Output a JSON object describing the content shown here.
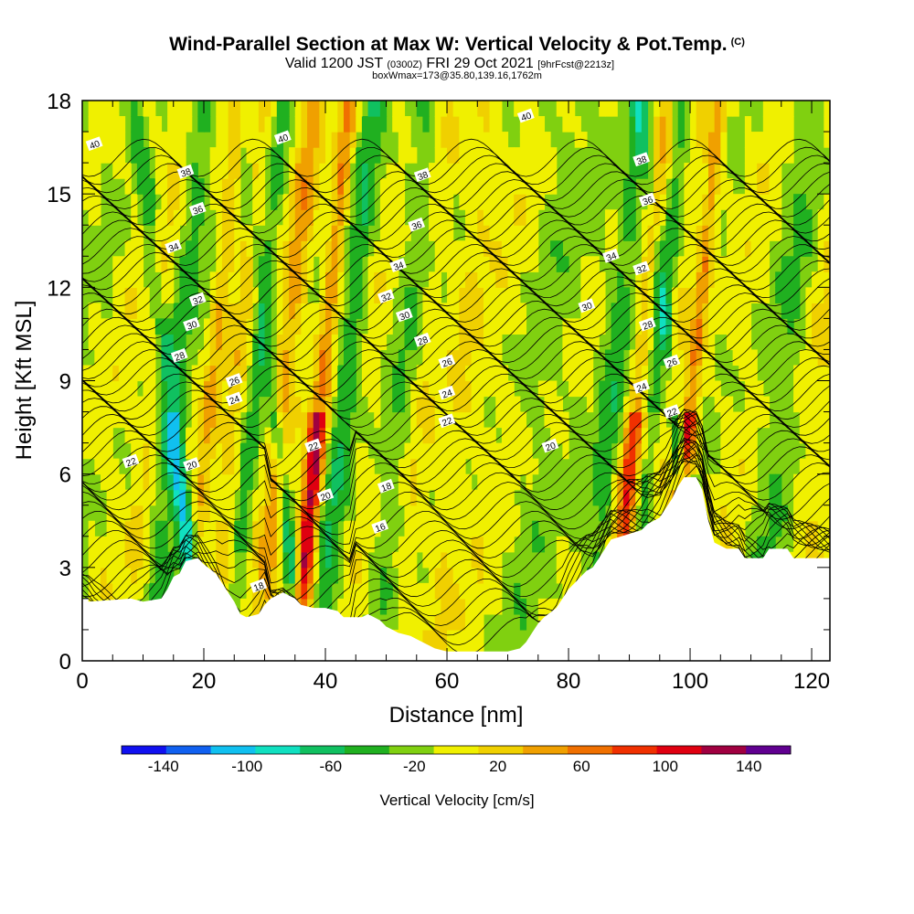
{
  "chart_data": {
    "type": "heatmap",
    "title": "Wind-Parallel Section at Max W: Vertical Velocity & Pot.Temp.",
    "title_mark": "(C)",
    "subtitle_parts": {
      "a": "Valid 1200 JST",
      "b": "(0300Z)",
      "c": "FRI 29 Oct 2021",
      "d": "[9hrFcst@2213z]"
    },
    "subtitle2": "boxWmax=173@35.80,139.16,1762m",
    "xlabel": "Distance [nm]",
    "ylabel": "Height [Kft MSL]",
    "xlim": [
      0,
      123
    ],
    "ylim": [
      0,
      18
    ],
    "x_ticks": [
      "0",
      "20",
      "40",
      "60",
      "80",
      "100",
      "120"
    ],
    "y_ticks": [
      "0",
      "3",
      "6",
      "9",
      "12",
      "15",
      "18"
    ],
    "colorbar": {
      "label": "Vertical Velocity [cm/s]",
      "ticks": [
        "-140",
        "-100",
        "-60",
        "-20",
        "20",
        "60",
        "100",
        "140"
      ],
      "colors": [
        "#1010f0",
        "#1060f0",
        "#10c0f0",
        "#10e0c0",
        "#10c060",
        "#20b020",
        "#80d010",
        "#f0f000",
        "#f0d000",
        "#f0a000",
        "#f07000",
        "#f03000",
        "#e00010",
        "#a00040",
        "#600090"
      ]
    },
    "terrain_kft": [
      [
        0,
        2
      ],
      [
        1,
        2
      ],
      [
        1,
        1.9
      ],
      [
        8,
        2
      ],
      [
        10,
        1.9
      ],
      [
        13,
        2
      ],
      [
        14,
        2.3
      ],
      [
        15,
        2.7
      ],
      [
        16,
        2.8
      ],
      [
        17,
        3.2
      ],
      [
        19,
        3.3
      ],
      [
        20,
        3.1
      ],
      [
        22,
        2.8
      ],
      [
        23,
        2.5
      ],
      [
        24,
        2.2
      ],
      [
        25,
        1.9
      ],
      [
        26,
        1.5
      ],
      [
        27,
        1.4
      ],
      [
        29,
        1.5
      ],
      [
        30,
        1.8
      ],
      [
        31,
        2.0
      ],
      [
        33,
        2.2
      ],
      [
        35,
        2.0
      ],
      [
        36,
        1.8
      ],
      [
        38,
        1.7
      ],
      [
        40,
        1.7
      ],
      [
        42,
        1.6
      ],
      [
        43,
        1.4
      ],
      [
        46,
        1.4
      ],
      [
        47,
        1.5
      ],
      [
        49,
        1.3
      ],
      [
        50,
        1.1
      ],
      [
        51,
        1.0
      ],
      [
        52,
        0.9
      ],
      [
        54,
        0.8
      ],
      [
        55,
        0.7
      ],
      [
        56,
        0.6
      ],
      [
        57,
        0.5
      ],
      [
        58,
        0.4
      ],
      [
        60,
        0.3
      ],
      [
        70,
        0.3
      ],
      [
        72,
        0.4
      ],
      [
        73,
        0.6
      ],
      [
        74,
        0.9
      ],
      [
        75,
        1.2
      ],
      [
        76,
        1.4
      ],
      [
        78,
        1.7
      ],
      [
        79,
        2.0
      ],
      [
        80,
        2.3
      ],
      [
        81,
        2.5
      ],
      [
        82,
        2.7
      ],
      [
        83,
        2.9
      ],
      [
        84,
        3.0
      ],
      [
        85,
        3.3
      ],
      [
        86,
        3.6
      ],
      [
        87,
        3.9
      ],
      [
        92,
        4.2
      ],
      [
        93,
        4.4
      ],
      [
        95,
        4.6
      ],
      [
        97,
        5.2
      ],
      [
        98,
        5.6
      ],
      [
        99,
        5.9
      ],
      [
        101,
        5.9
      ],
      [
        102,
        5.5
      ],
      [
        103,
        4.5
      ],
      [
        104,
        3.8
      ],
      [
        106,
        3.6
      ],
      [
        108,
        3.6
      ],
      [
        109,
        3.3
      ],
      [
        112,
        3.3
      ],
      [
        113,
        3.6
      ],
      [
        116,
        3.6
      ],
      [
        117,
        3.3
      ],
      [
        123,
        3.3
      ]
    ],
    "w_columns": [
      {
        "x": 4,
        "hw": 2.5,
        "w": 10
      },
      {
        "x": 9,
        "hw": 2,
        "w": 20
      },
      {
        "x": 13,
        "hw": 2,
        "w": -30
      },
      {
        "x": 17,
        "hw": 1.5,
        "w": -80
      },
      {
        "x": 19,
        "hw": 1.5,
        "w": 40
      },
      {
        "x": 23,
        "hw": 2,
        "w": 30
      },
      {
        "x": 26,
        "hw": 1.5,
        "w": -30
      },
      {
        "x": 31,
        "hw": 2,
        "w": 50
      },
      {
        "x": 34,
        "hw": 1.2,
        "w": -60
      },
      {
        "x": 37,
        "hw": 1.5,
        "w": 130
      },
      {
        "x": 41,
        "hw": 2,
        "w": -40
      },
      {
        "x": 45,
        "hw": 3,
        "w": 10
      },
      {
        "x": 50,
        "hw": 2,
        "w": -20
      },
      {
        "x": 54,
        "hw": 2,
        "w": 15
      },
      {
        "x": 60,
        "hw": 3,
        "w": 20
      },
      {
        "x": 66,
        "hw": 3,
        "w": 10
      },
      {
        "x": 74,
        "hw": 3,
        "w": -10
      },
      {
        "x": 85,
        "hw": 2,
        "w": -30
      },
      {
        "x": 89,
        "hw": 1.5,
        "w": 90
      },
      {
        "x": 92,
        "hw": 1.5,
        "w": -30
      },
      {
        "x": 95,
        "hw": 2,
        "w": 20
      },
      {
        "x": 98,
        "hw": 1.2,
        "w": 120
      },
      {
        "x": 100,
        "hw": 1.2,
        "w": -70
      },
      {
        "x": 106,
        "hw": 3,
        "w": 10
      },
      {
        "x": 113,
        "hw": 3,
        "w": -20
      },
      {
        "x": 119,
        "hw": 3,
        "w": 20
      }
    ],
    "contour_labels": [
      {
        "x": 2,
        "y": 16.6,
        "t": "40"
      },
      {
        "x": 33,
        "y": 16.8,
        "t": "40"
      },
      {
        "x": 73,
        "y": 17.5,
        "t": "40"
      },
      {
        "x": 17,
        "y": 15.7,
        "t": "38"
      },
      {
        "x": 56,
        "y": 15.6,
        "t": "38"
      },
      {
        "x": 92,
        "y": 16.1,
        "t": "38"
      },
      {
        "x": 19,
        "y": 14.5,
        "t": "36"
      },
      {
        "x": 55,
        "y": 14.0,
        "t": "36"
      },
      {
        "x": 93,
        "y": 14.8,
        "t": "36"
      },
      {
        "x": 15,
        "y": 13.3,
        "t": "34"
      },
      {
        "x": 52,
        "y": 12.7,
        "t": "34"
      },
      {
        "x": 87,
        "y": 13.0,
        "t": "34"
      },
      {
        "x": 19,
        "y": 11.6,
        "t": "32"
      },
      {
        "x": 50,
        "y": 11.7,
        "t": "32"
      },
      {
        "x": 92,
        "y": 12.6,
        "t": "32"
      },
      {
        "x": 18,
        "y": 10.8,
        "t": "30"
      },
      {
        "x": 53,
        "y": 11.1,
        "t": "30"
      },
      {
        "x": 83,
        "y": 11.4,
        "t": "30"
      },
      {
        "x": 16,
        "y": 9.8,
        "t": "28"
      },
      {
        "x": 56,
        "y": 10.3,
        "t": "28"
      },
      {
        "x": 93,
        "y": 10.8,
        "t": "28"
      },
      {
        "x": 25,
        "y": 9.0,
        "t": "26"
      },
      {
        "x": 60,
        "y": 9.6,
        "t": "26"
      },
      {
        "x": 97,
        "y": 9.6,
        "t": "26"
      },
      {
        "x": 25,
        "y": 8.4,
        "t": "24"
      },
      {
        "x": 60,
        "y": 8.6,
        "t": "24"
      },
      {
        "x": 92,
        "y": 8.8,
        "t": "24"
      },
      {
        "x": 8,
        "y": 6.4,
        "t": "22"
      },
      {
        "x": 60,
        "y": 7.7,
        "t": "22"
      },
      {
        "x": 97,
        "y": 8.0,
        "t": "22"
      },
      {
        "x": 38,
        "y": 6.9,
        "t": "22"
      },
      {
        "x": 18,
        "y": 6.3,
        "t": "20"
      },
      {
        "x": 40,
        "y": 5.3,
        "t": "20"
      },
      {
        "x": 77,
        "y": 6.9,
        "t": "20"
      },
      {
        "x": 50,
        "y": 5.6,
        "t": "18"
      },
      {
        "x": 29,
        "y": 2.4,
        "t": "18"
      },
      {
        "x": 49,
        "y": 4.3,
        "t": "16"
      }
    ]
  }
}
